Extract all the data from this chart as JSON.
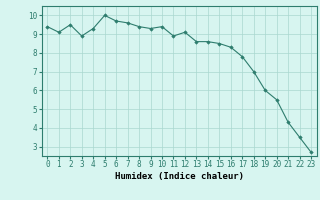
{
  "x": [
    0,
    1,
    2,
    3,
    4,
    5,
    6,
    7,
    8,
    9,
    10,
    11,
    12,
    13,
    14,
    15,
    16,
    17,
    18,
    19,
    20,
    21,
    22,
    23
  ],
  "y": [
    9.4,
    9.1,
    9.5,
    8.9,
    9.3,
    10.0,
    9.7,
    9.6,
    9.4,
    9.3,
    9.4,
    8.9,
    9.1,
    8.6,
    8.6,
    8.5,
    8.3,
    7.8,
    7.0,
    6.0,
    5.5,
    4.3,
    3.5,
    2.7
  ],
  "line_color": "#2e7d6e",
  "marker": "D",
  "marker_size": 1.8,
  "bg_color": "#d7f5f0",
  "grid_color": "#aad8d0",
  "xlabel": "Humidex (Indice chaleur)",
  "xlim": [
    -0.5,
    23.5
  ],
  "ylim": [
    2.5,
    10.5
  ],
  "yticks": [
    3,
    4,
    5,
    6,
    7,
    8,
    9,
    10
  ],
  "xtick_labels": [
    "0",
    "1",
    "2",
    "3",
    "4",
    "5",
    "6",
    "7",
    "8",
    "9",
    "10",
    "11",
    "12",
    "13",
    "14",
    "15",
    "16",
    "17",
    "18",
    "19",
    "20",
    "21",
    "22",
    "23"
  ],
  "label_fontsize": 6.5,
  "tick_fontsize": 5.5
}
